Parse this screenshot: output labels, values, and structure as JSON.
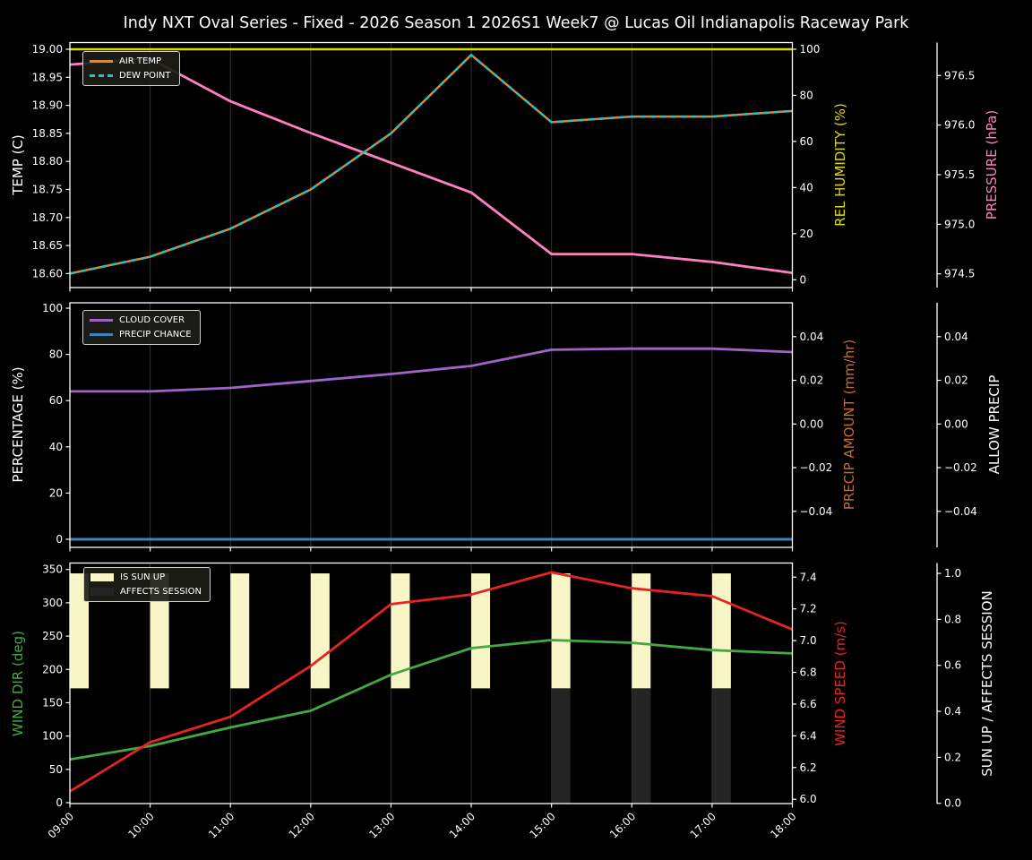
{
  "title": "Indy NXT Oval Series - Fixed - 2026 Season 1 2026S1 Week7 @ Lucas Oil Indianapolis Raceway Park",
  "background": "#000000",
  "style": {
    "grid_color": "#333333",
    "spine_color": "#ffffff",
    "tick_label_color": "#ffffff",
    "legend_background": "#1d1d18",
    "legend_border": "#cfcfcf"
  },
  "x_axis": {
    "labels": [
      "09:00",
      "10:00",
      "11:00",
      "12:00",
      "13:00",
      "14:00",
      "15:00",
      "16:00",
      "17:00",
      "18:00"
    ]
  },
  "chart_data": [
    {
      "name": "temperature-panel",
      "type": "line",
      "x": [
        "09:00",
        "10:00",
        "11:00",
        "12:00",
        "13:00",
        "14:00",
        "15:00",
        "16:00",
        "17:00",
        "18:00"
      ],
      "series": [
        {
          "name": "REL HUMIDITY",
          "axis": "humidity",
          "color": "#dcdc00",
          "style": "solid",
          "width": 2.6,
          "values": [
            100,
            100,
            100,
            100,
            100,
            100,
            100,
            100,
            100,
            100
          ]
        },
        {
          "name": "PRESSURE",
          "axis": "pressure",
          "color": "#ff80c0",
          "style": "solid",
          "width": 2.8,
          "values": [
            976.61,
            976.67,
            976.24,
            975.92,
            975.62,
            975.32,
            974.7,
            974.7,
            974.62,
            974.51
          ]
        },
        {
          "name": "AIR TEMP",
          "axis": "temp",
          "color": "#ff7f0e",
          "style": "solid",
          "width": 2.5,
          "values": [
            18.6,
            18.63,
            18.68,
            18.75,
            18.85,
            18.99,
            18.87,
            18.88,
            18.88,
            18.89
          ]
        },
        {
          "name": "DEW POINT",
          "axis": "temp",
          "color": "#1fc4c4",
          "style": "dashed",
          "width": 2.5,
          "values": [
            18.6,
            18.63,
            18.68,
            18.75,
            18.85,
            18.99,
            18.87,
            18.88,
            18.88,
            18.89
          ]
        }
      ],
      "legend": [
        {
          "label": "AIR TEMP"
        },
        {
          "label": "DEW POINT"
        }
      ],
      "axes": {
        "temp": {
          "label": "TEMP (C)",
          "color": "#ffffff",
          "side": "left",
          "range": [
            18.575,
            19.012
          ],
          "tick_values": [
            18.6,
            18.65,
            18.7,
            18.75,
            18.8,
            18.85,
            18.9,
            18.95,
            19.0
          ],
          "tick_labels": [
            "18.60",
            "18.65",
            "18.70",
            "18.75",
            "18.80",
            "18.85",
            "18.90",
            "18.95",
            "19.00"
          ]
        },
        "humidity": {
          "label": "REL HUMIDITY (%)",
          "color": "#dcdc00",
          "side": "right1",
          "range": [
            -3.38,
            102.9
          ],
          "tick_values": [
            0,
            20,
            40,
            60,
            80,
            100
          ],
          "tick_labels": [
            "0",
            "20",
            "40",
            "60",
            "80",
            "100"
          ]
        },
        "pressure": {
          "label": "PRESSURE (hPa)",
          "color": "#ff80c0",
          "side": "right2",
          "range": [
            974.362,
            976.832
          ],
          "tick_values": [
            974.5,
            975.0,
            975.5,
            976.0,
            976.5
          ],
          "tick_labels": [
            "974.5",
            "975.0",
            "975.5",
            "976.0",
            "976.5"
          ]
        }
      }
    },
    {
      "name": "precipitation-panel",
      "type": "line",
      "x": [
        "09:00",
        "10:00",
        "11:00",
        "12:00",
        "13:00",
        "14:00",
        "15:00",
        "16:00",
        "17:00",
        "18:00"
      ],
      "series": [
        {
          "name": "CLOUD COVER",
          "axis": "percentage",
          "color": "#a263c6",
          "style": "solid",
          "width": 2.8,
          "values": [
            64,
            64,
            65.5,
            68.5,
            71.5,
            75,
            82,
            82.5,
            82.5,
            81
          ]
        },
        {
          "name": "PRECIP CHANCE",
          "axis": "percentage",
          "color": "#3e82c4",
          "style": "solid",
          "width": 3,
          "values": [
            0,
            0,
            0,
            0,
            0,
            0,
            0,
            0,
            0,
            0
          ]
        }
      ],
      "legend": [
        {
          "label": "CLOUD COVER"
        },
        {
          "label": "PRECIP CHANCE"
        }
      ],
      "axes": {
        "percentage": {
          "label": "PERCENTAGE (%)",
          "color": "#ffffff",
          "side": "left",
          "range": [
            -3.49,
            102.33
          ],
          "tick_values": [
            0,
            20,
            40,
            60,
            80,
            100
          ],
          "tick_labels": [
            "0",
            "20",
            "40",
            "60",
            "80",
            "100"
          ]
        },
        "precip_amount": {
          "label": "PRECIP AMOUNT (mm/hr)",
          "color": "#c66b33",
          "side": "right1",
          "range": [
            -0.0565,
            0.0555
          ],
          "tick_values": [
            -0.04,
            -0.02,
            0.0,
            0.02,
            0.04
          ],
          "tick_labels": [
            "−0.04",
            "−0.02",
            "0.00",
            "0.02",
            "0.04"
          ]
        },
        "allow_precip": {
          "label": "ALLOW PRECIP",
          "color": "#ffffff",
          "side": "right2",
          "range": [
            -0.0565,
            0.0555
          ],
          "tick_values": [
            -0.04,
            -0.02,
            0.0,
            0.02,
            0.04
          ],
          "tick_labels": [
            "−0.04",
            "−0.02",
            "0.00",
            "0.02",
            "0.04"
          ]
        }
      }
    },
    {
      "name": "wind-panel",
      "type": "line+bar",
      "x": [
        "09:00",
        "10:00",
        "11:00",
        "12:00",
        "13:00",
        "14:00",
        "15:00",
        "16:00",
        "17:00",
        "18:00"
      ],
      "bars": [
        {
          "name": "IS SUN UP",
          "axis": "sunup",
          "color": "#f8f5c6",
          "style": "patch",
          "base": 0.5,
          "top": 1.0,
          "active": [
            1,
            1,
            1,
            1,
            1,
            1,
            1,
            1,
            1,
            0
          ]
        },
        {
          "name": "AFFECTS SESSION",
          "axis": "sunup",
          "color": "#252525",
          "style": "patch",
          "base": 0.0,
          "top": 0.5,
          "active": [
            0,
            0,
            0,
            0,
            0,
            0,
            1,
            1,
            1,
            0
          ]
        }
      ],
      "series": [
        {
          "name": "WIND DIR",
          "axis": "wind_dir",
          "color": "#43a843",
          "style": "solid",
          "width": 2.8,
          "values": [
            65,
            85,
            113,
            138,
            192,
            232,
            244,
            240,
            229,
            224
          ]
        },
        {
          "name": "WIND SPEED",
          "axis": "wind_speed",
          "color": "#e62222",
          "style": "solid",
          "width": 2.8,
          "values": [
            6.05,
            6.36,
            6.52,
            6.84,
            7.23,
            7.29,
            7.43,
            7.33,
            7.28,
            7.07
          ]
        }
      ],
      "legend": [
        {
          "label": "IS SUN UP"
        },
        {
          "label": "AFFECTS SESSION"
        }
      ],
      "axes": {
        "wind_dir": {
          "label": "WIND DIR (deg)",
          "color": "#43a843",
          "side": "left",
          "range": [
            -1.34,
            359.7
          ],
          "tick_values": [
            0,
            50,
            100,
            150,
            200,
            250,
            300,
            350
          ],
          "tick_labels": [
            "0",
            "50",
            "100",
            "150",
            "200",
            "250",
            "300",
            "350"
          ]
        },
        "wind_speed": {
          "label": "WIND SPEED (m/s)",
          "color": "#e62222",
          "side": "right1",
          "range": [
            5.973,
            7.489
          ],
          "tick_values": [
            6.0,
            6.2,
            6.4,
            6.6,
            6.8,
            7.0,
            7.2,
            7.4
          ],
          "tick_labels": [
            "6.0",
            "6.2",
            "6.4",
            "6.6",
            "6.8",
            "7.0",
            "7.2",
            "7.4"
          ]
        },
        "sunup": {
          "label": "SUN UP / AFFECTS SESSION",
          "color": "#ffffff",
          "side": "right2",
          "range": [
            -0.001,
            1.045
          ],
          "tick_values": [
            0.0,
            0.2,
            0.4,
            0.6,
            0.8,
            1.0
          ],
          "tick_labels": [
            "0.0",
            "0.2",
            "0.4",
            "0.6",
            "0.8",
            "1.0"
          ]
        }
      }
    }
  ]
}
